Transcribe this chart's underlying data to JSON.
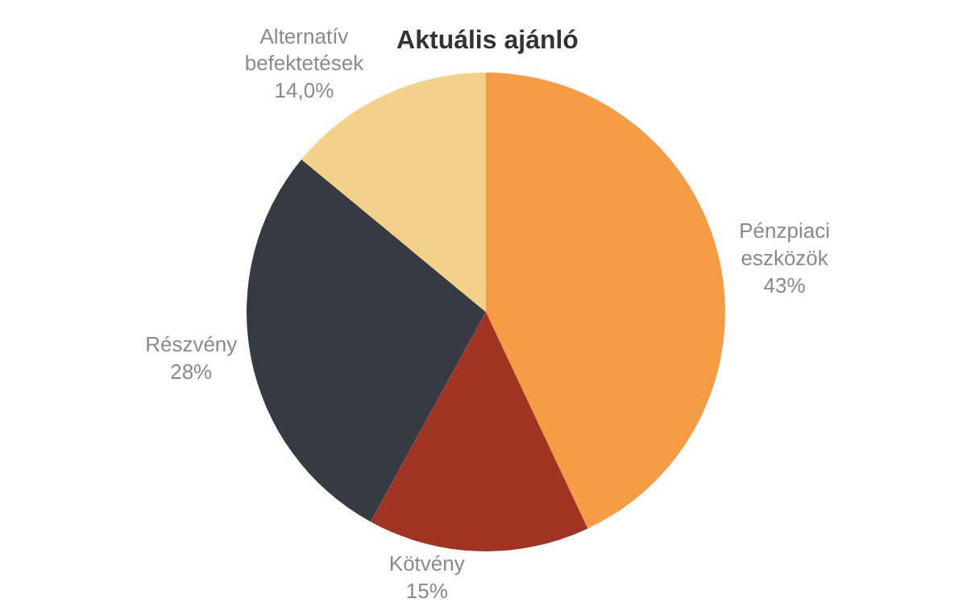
{
  "chart_data": {
    "type": "pie",
    "title": "Aktuális ajánló",
    "categories": [
      "Pénzpiaci eszközök",
      "Kötvény",
      "Részvény",
      "Alternatív befektetések"
    ],
    "values": [
      43,
      15,
      28,
      14
    ],
    "value_labels": [
      "43%",
      "15%",
      "28%",
      "14,0%"
    ],
    "colors": [
      "#f59c45",
      "#a03322",
      "#363a43",
      "#f3d18a"
    ],
    "legend": false
  }
}
